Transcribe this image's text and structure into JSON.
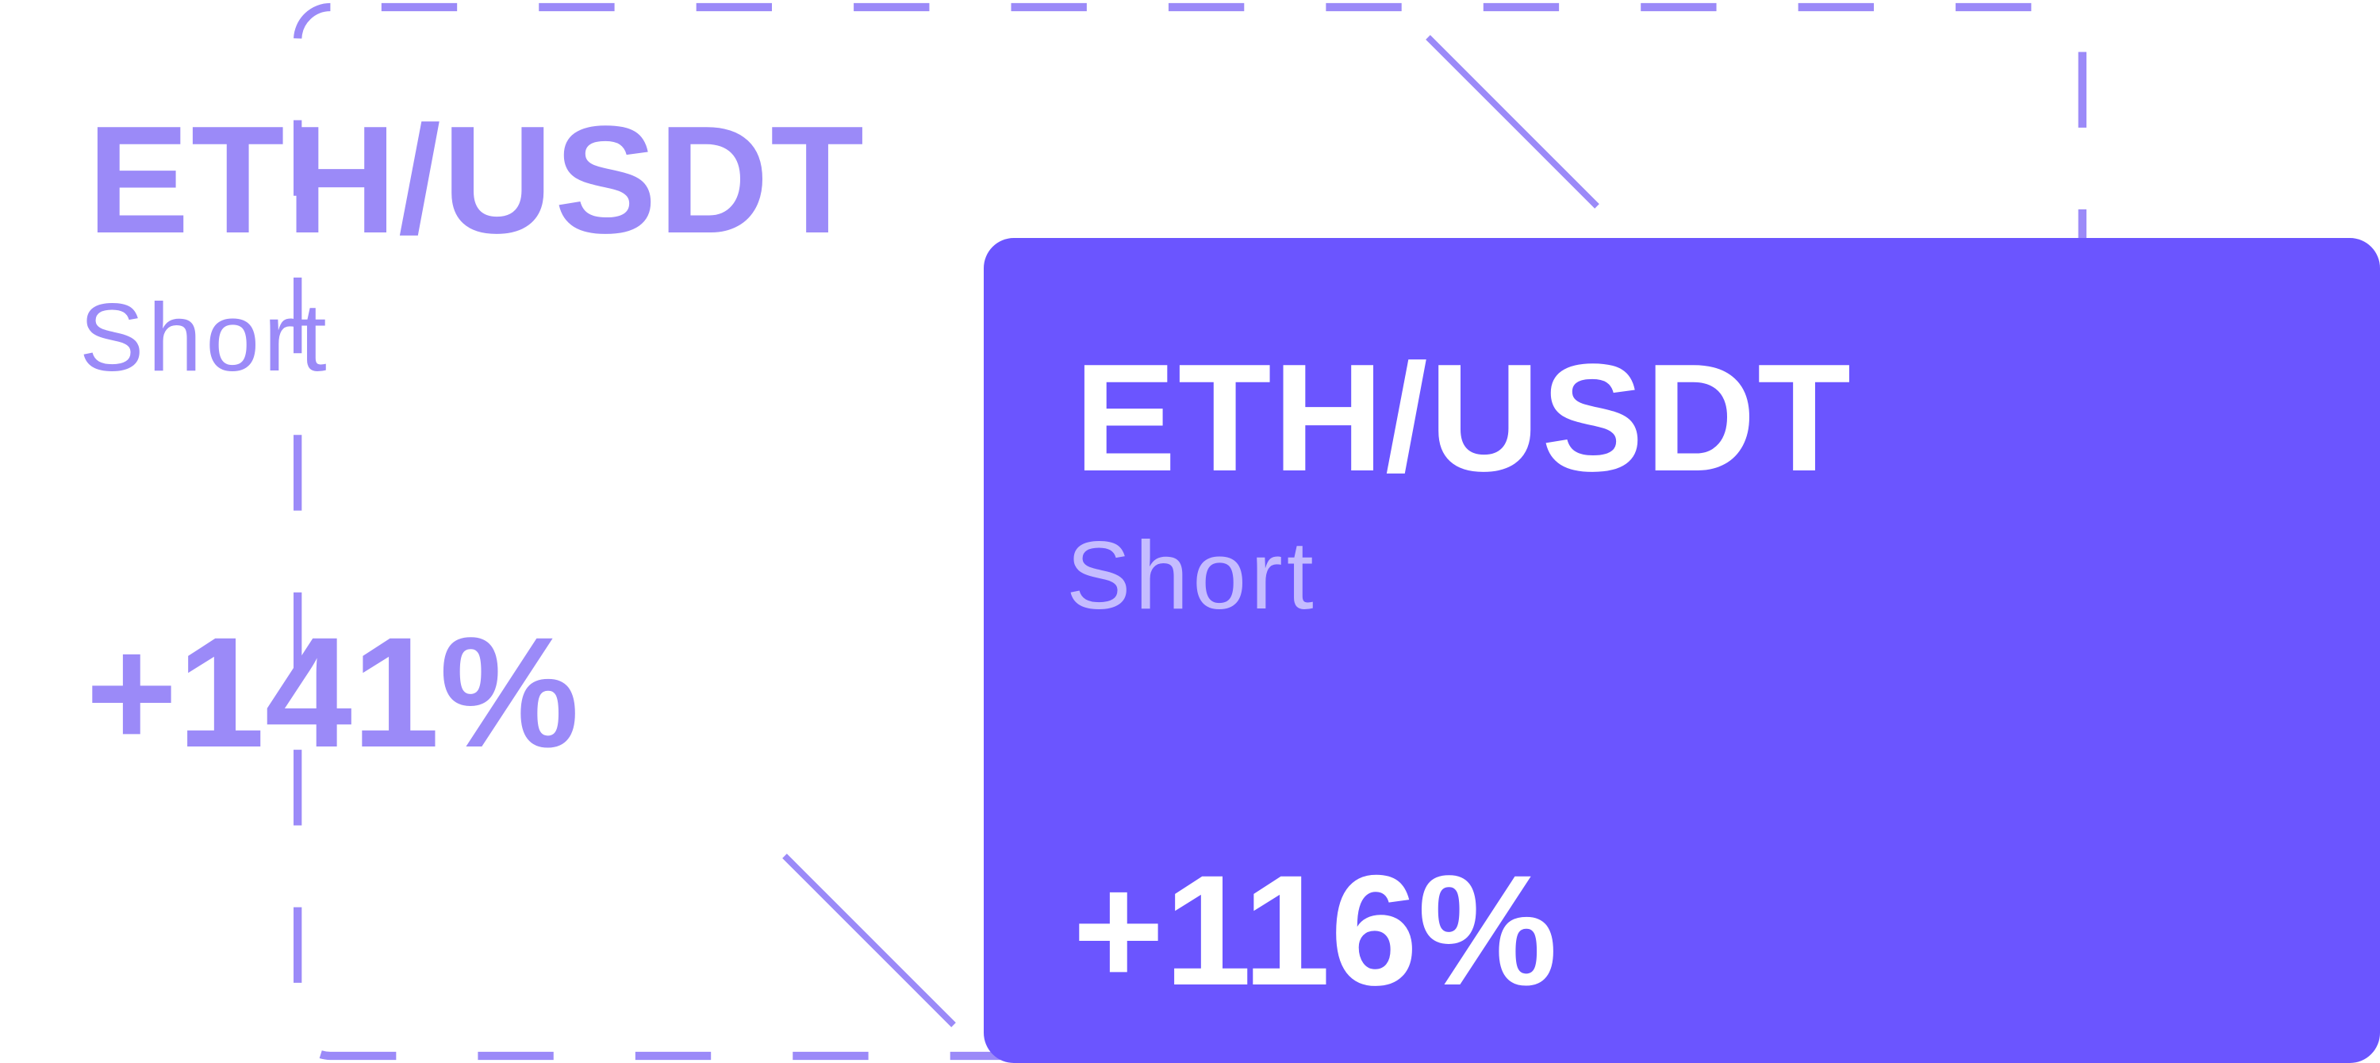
{
  "colors": {
    "accent": "#6b55ff",
    "ghost_accent": "#9b8af8",
    "background": "#ffffff",
    "active_text": "#ffffff",
    "active_subtext": "#c5bcff"
  },
  "ghost_card": {
    "pair": "ETH/USDT",
    "side": "Short",
    "pnl": "+141%"
  },
  "active_card": {
    "pair": "ETH/USDT",
    "side": "Short",
    "pnl": "+116%"
  }
}
